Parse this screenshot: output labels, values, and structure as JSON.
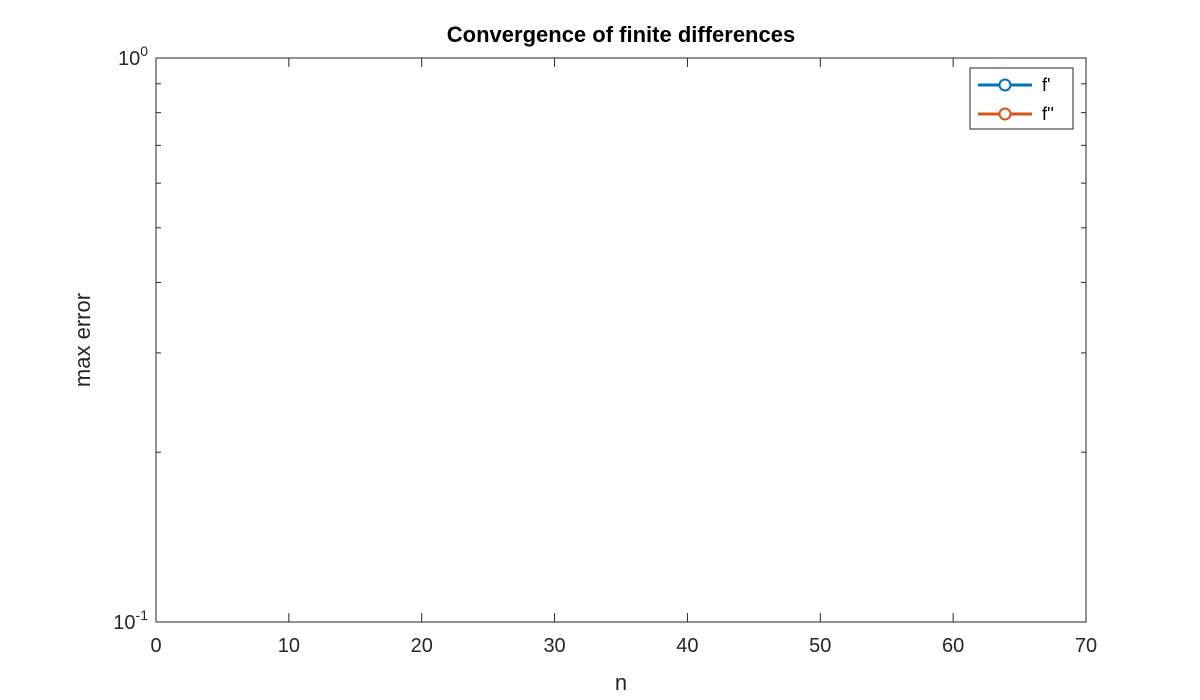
{
  "chart_data": {
    "type": "line",
    "title": "Convergence of finite differences",
    "xlabel": "n",
    "ylabel": "max error",
    "xlim": [
      0,
      70
    ],
    "ylim": [
      0.1,
      1
    ],
    "yscale": "log",
    "xticks": [
      "0",
      "10",
      "20",
      "30",
      "40",
      "50",
      "60",
      "70"
    ],
    "xtick_values": [
      0,
      10,
      20,
      30,
      40,
      50,
      60,
      70
    ],
    "yticks": [
      {
        "value": 1,
        "base": "10",
        "exp": "0"
      },
      {
        "value": 0.1,
        "base": "10",
        "exp": "-1"
      }
    ],
    "y_minor_ticks": [
      0.2,
      0.3,
      0.4,
      0.5,
      0.6,
      0.7,
      0.8,
      0.9
    ],
    "grid": false,
    "legend_position": "top-right",
    "series": [
      {
        "name": "f'",
        "color": "#0072BD",
        "marker": "circle",
        "x": [],
        "y": []
      },
      {
        "name": "f''",
        "color": "#D95319",
        "marker": "circle",
        "x": [],
        "y": []
      }
    ]
  }
}
